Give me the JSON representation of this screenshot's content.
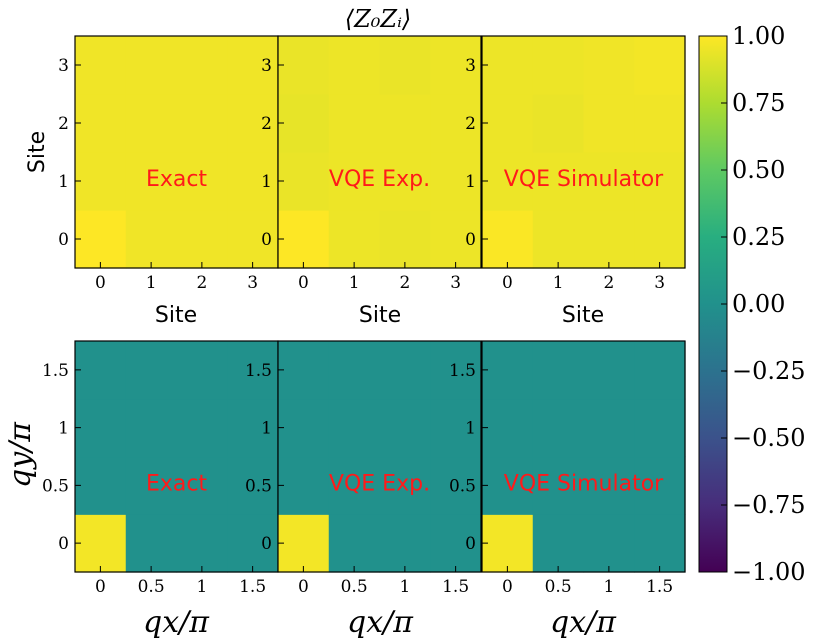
{
  "chart_data": [
    {
      "type": "heatmap",
      "row": "top",
      "title": "⟨Z₀Zᵢ⟩",
      "xlabel": "Site",
      "ylabel": "Site",
      "x_ticks": [
        "0",
        "1",
        "2",
        "3"
      ],
      "y_ticks": [
        "0",
        "1",
        "2",
        "3"
      ],
      "panels": [
        {
          "label": "Exact",
          "values": [
            [
              1.0,
              0.96,
              0.96,
              0.96
            ],
            [
              0.96,
              0.96,
              0.96,
              0.96
            ],
            [
              0.96,
              0.96,
              0.96,
              0.96
            ],
            [
              0.96,
              0.96,
              0.96,
              0.96
            ]
          ]
        },
        {
          "label": "VQE Exp.",
          "values": [
            [
              1.0,
              0.95,
              0.94,
              0.95
            ],
            [
              0.94,
              0.95,
              0.95,
              0.95
            ],
            [
              0.93,
              0.95,
              0.95,
              0.95
            ],
            [
              0.94,
              0.95,
              0.94,
              0.95
            ]
          ]
        },
        {
          "label": "VQE Simulator",
          "values": [
            [
              0.99,
              0.95,
              0.95,
              0.95
            ],
            [
              0.95,
              0.95,
              0.95,
              0.95
            ],
            [
              0.95,
              0.94,
              0.96,
              0.96
            ],
            [
              0.95,
              0.95,
              0.96,
              0.97
            ]
          ]
        }
      ]
    },
    {
      "type": "heatmap",
      "row": "bottom",
      "xlabel": "qx/π",
      "ylabel": "qy/π",
      "x_ticks": [
        "0",
        "0.5",
        "1",
        "1.5"
      ],
      "y_ticks": [
        "0",
        "0.5",
        "1",
        "1.5"
      ],
      "panels": [
        {
          "label": "Exact",
          "values": [
            [
              0.97,
              0.0,
              0.0,
              0.0
            ],
            [
              0.0,
              0.0,
              0.0,
              0.0
            ],
            [
              0.0,
              0.0,
              0.0,
              0.0
            ],
            [
              0.0,
              0.0,
              0.0,
              0.0
            ]
          ]
        },
        {
          "label": "VQE Exp.",
          "values": [
            [
              0.97,
              0.0,
              0.0,
              0.0
            ],
            [
              0.0,
              0.0,
              0.0,
              0.0
            ],
            [
              0.0,
              0.0,
              0.0,
              0.0
            ],
            [
              0.0,
              0.0,
              0.0,
              0.0
            ]
          ]
        },
        {
          "label": "VQE Simulator",
          "values": [
            [
              0.97,
              0.0,
              0.0,
              0.0
            ],
            [
              0.0,
              0.0,
              0.0,
              0.0
            ],
            [
              0.0,
              0.0,
              0.0,
              0.0
            ],
            [
              0.0,
              0.0,
              0.0,
              0.0
            ]
          ]
        }
      ]
    },
    {
      "type": "colorbar",
      "colormap": "viridis",
      "range": [
        -1.0,
        1.0
      ],
      "ticks": [
        "1.00",
        "0.75",
        "0.50",
        "0.25",
        "0.00",
        "−0.25",
        "−0.50",
        "−0.75",
        "−1.00"
      ]
    }
  ]
}
